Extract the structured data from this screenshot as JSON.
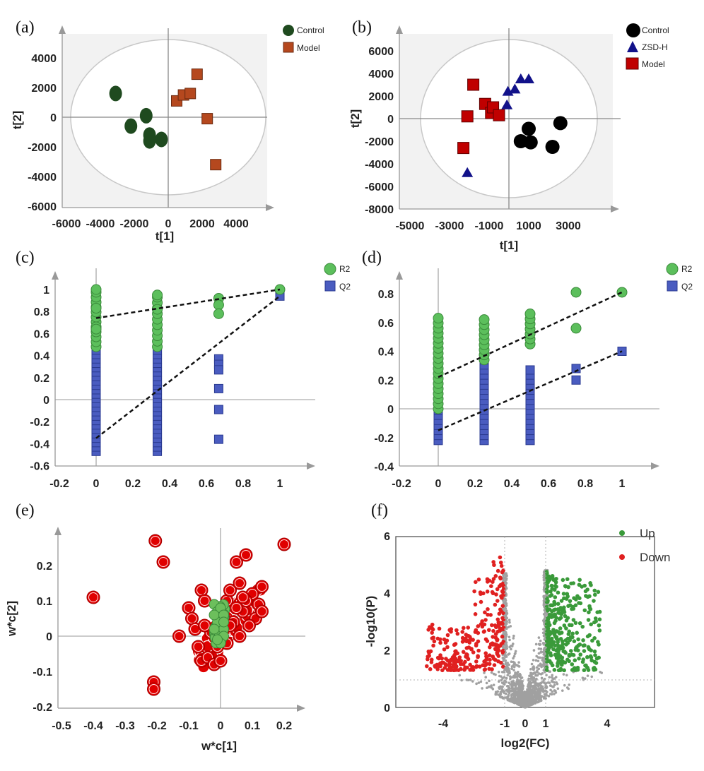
{
  "colors": {
    "control_a": "#1f4a1f",
    "model_a": "#b5481e",
    "control_b": "#000000",
    "zsd_b": "#12128a",
    "model_b": "#c00000",
    "r2": "#5cbf5c",
    "q2": "#4a5cc0",
    "splot_red": "#e00000",
    "splot_green": "#6cbf5c",
    "up": "#3a9a3a",
    "down": "#e02020",
    "ns": "#a0a0a0"
  },
  "chart_data": [
    {
      "panel": "(a)",
      "type": "scatter",
      "xlabel": "t[1]",
      "ylabel": "t[2]",
      "xlim": [
        -6000,
        6000
      ],
      "ylim": [
        -6000,
        5500
      ],
      "xticks": [
        "-6000",
        "-4000",
        "-2000",
        "0",
        "2000",
        "4000"
      ],
      "yticks": [
        "4000",
        "2000",
        "0",
        "-2000",
        "-4000",
        "-6000"
      ],
      "legend": [
        "Control",
        "Model"
      ],
      "series": [
        {
          "name": "Control",
          "marker": "circle",
          "points": [
            [
              -3100,
              1600
            ],
            [
              -2200,
              -600
            ],
            [
              -1300,
              100
            ],
            [
              -1100,
              -1200
            ],
            [
              -1100,
              -1600
            ],
            [
              -400,
              -1500
            ]
          ]
        },
        {
          "name": "Model",
          "marker": "square",
          "points": [
            [
              500,
              1100
            ],
            [
              900,
              1500
            ],
            [
              1300,
              1600
            ],
            [
              1700,
              2900
            ],
            [
              2300,
              -100
            ],
            [
              2800,
              -3200
            ]
          ]
        }
      ]
    },
    {
      "panel": "(b)",
      "type": "scatter",
      "xlabel": "t[1]",
      "ylabel": "t[2]",
      "xlim": [
        -5000,
        5500
      ],
      "ylim": [
        -8000,
        7000
      ],
      "xticks": [
        "-5000",
        "-3000",
        "-1000",
        "1000",
        "3000"
      ],
      "yticks": [
        "6000",
        "4000",
        "2000",
        "0",
        "-2000",
        "-4000",
        "-6000",
        "-8000"
      ],
      "legend": [
        "Control",
        "ZSD-H",
        "Model"
      ],
      "series": [
        {
          "name": "Control",
          "marker": "circle",
          "points": [
            [
              600,
              -2000
            ],
            [
              1000,
              -900
            ],
            [
              1100,
              -2100
            ],
            [
              2200,
              -2500
            ],
            [
              2600,
              -400
            ]
          ]
        },
        {
          "name": "ZSD-H",
          "marker": "triangle",
          "points": [
            [
              -2100,
              -4800
            ],
            [
              -100,
              1200
            ],
            [
              -50,
              2400
            ],
            [
              300,
              2600
            ],
            [
              600,
              3500
            ],
            [
              1000,
              3500
            ]
          ]
        },
        {
          "name": "Model",
          "marker": "square",
          "points": [
            [
              -2300,
              -2600
            ],
            [
              -2100,
              200
            ],
            [
              -1800,
              3000
            ],
            [
              -1200,
              1300
            ],
            [
              -900,
              500
            ],
            [
              -800,
              1000
            ],
            [
              -500,
              300
            ]
          ]
        }
      ]
    },
    {
      "panel": "(c)",
      "type": "scatter",
      "xlim": [
        -0.2,
        1.2
      ],
      "ylim": [
        -0.6,
        1.1
      ],
      "xticks": [
        "-0.2",
        "0",
        "0.2",
        "0.4",
        "0.6",
        "0.8",
        "1"
      ],
      "yticks": [
        "1",
        "0.8",
        "0.6",
        "0.4",
        "0.2",
        "0",
        "-0.2",
        "-0.4",
        "-0.6"
      ],
      "legend": [
        "R2",
        "Q2"
      ],
      "series": [
        {
          "name": "R2",
          "marker": "circle",
          "x": 0,
          "ymin": 0.48,
          "ymax": 1.0,
          "points": [
            [
              0,
              1.0
            ],
            [
              0,
              0.83
            ],
            [
              0,
              0.66
            ],
            [
              0,
              0.64
            ],
            [
              0.333,
              0.95
            ],
            [
              0.333,
              0.82
            ],
            [
              0.667,
              0.92
            ],
            [
              0.667,
              0.86
            ],
            [
              0.667,
              0.78
            ],
            [
              1,
              1.0
            ]
          ]
        },
        {
          "name": "Q2",
          "marker": "square",
          "points": [
            [
              0.667,
              0.37
            ],
            [
              0.667,
              0.32
            ],
            [
              0.667,
              0.27
            ],
            [
              0.667,
              0.1
            ],
            [
              0.667,
              -0.09
            ],
            [
              0.667,
              -0.36
            ],
            [
              1,
              0.94
            ]
          ]
        },
        {
          "name": "Q2-column",
          "marker": "square",
          "columns": [
            [
              0,
              -0.47,
              0.84
            ],
            [
              0.333,
              -0.47,
              0.71
            ]
          ]
        }
      ],
      "trend_lines": [
        {
          "name": "R2",
          "from": [
            0,
            0.74
          ],
          "to": [
            1,
            1.0
          ]
        },
        {
          "name": "Q2",
          "from": [
            0,
            -0.35
          ],
          "to": [
            1,
            0.94
          ]
        }
      ]
    },
    {
      "panel": "(d)",
      "type": "scatter",
      "xlim": [
        -0.2,
        1.2
      ],
      "ylim": [
        -0.4,
        0.9
      ],
      "xticks": [
        "-0.2",
        "0",
        "0.2",
        "0.4",
        "0.6",
        "0.8",
        "1"
      ],
      "yticks": [
        "0.8",
        "0.6",
        "0.4",
        "0.2",
        "0",
        "-0.2",
        "-0.4"
      ],
      "legend": [
        "R2",
        "Q2"
      ],
      "series": [
        {
          "name": "R2",
          "marker": "circle",
          "columns": [
            [
              0,
              0.0,
              0.65
            ],
            [
              0.25,
              0.34,
              0.65
            ],
            [
              0.5,
              0.45,
              0.69
            ]
          ],
          "points": [
            [
              0.75,
              0.81
            ],
            [
              0.75,
              0.56
            ],
            [
              1,
              0.81
            ]
          ]
        },
        {
          "name": "Q2",
          "marker": "square",
          "columns": [
            [
              0,
              -0.22,
              0.3
            ],
            [
              0.25,
              -0.22,
              0.41
            ],
            [
              0.5,
              -0.22,
              0.27
            ]
          ],
          "points": [
            [
              0.75,
              0.28
            ],
            [
              0.75,
              0.2
            ],
            [
              1,
              0.4
            ]
          ]
        }
      ],
      "trend_lines": [
        {
          "name": "R2",
          "from": [
            0,
            0.22
          ],
          "to": [
            1,
            0.81
          ]
        },
        {
          "name": "Q2",
          "from": [
            0,
            -0.15
          ],
          "to": [
            1,
            0.4
          ]
        }
      ]
    },
    {
      "panel": "(e)",
      "type": "scatter",
      "xlabel": "w*c[1]",
      "ylabel": "w*c[2]",
      "xlim": [
        -0.5,
        0.25
      ],
      "ylim": [
        -0.2,
        0.3
      ],
      "xticks": [
        "-0.5",
        "-0.4",
        "-0.3",
        "-0.2",
        "-0.1",
        "0",
        "0.1",
        "0.2"
      ],
      "yticks": [
        "0.2",
        "0.1",
        "0",
        "-0.1",
        "-0.2"
      ],
      "series": [
        {
          "name": "red",
          "marker": "circle",
          "points": [
            [
              -0.4,
              0.11
            ],
            [
              -0.205,
              0.27
            ],
            [
              -0.18,
              0.21
            ],
            [
              -0.21,
              -0.13
            ],
            [
              -0.21,
              -0.15
            ],
            [
              -0.13,
              0.0
            ],
            [
              -0.1,
              0.08
            ],
            [
              -0.09,
              0.05
            ],
            [
              -0.08,
              0.02
            ],
            [
              -0.06,
              0.13
            ],
            [
              -0.05,
              0.1
            ],
            [
              -0.07,
              -0.03
            ],
            [
              -0.06,
              -0.07
            ],
            [
              -0.04,
              -0.06
            ],
            [
              -0.02,
              -0.08
            ],
            [
              0.0,
              -0.07
            ],
            [
              0.02,
              0.1
            ],
            [
              0.03,
              0.13
            ],
            [
              0.05,
              0.21
            ],
            [
              0.06,
              0.15
            ],
            [
              0.07,
              0.07
            ],
            [
              0.08,
              0.23
            ],
            [
              0.1,
              0.12
            ],
            [
              0.11,
              0.05
            ],
            [
              0.12,
              0.09
            ],
            [
              0.13,
              0.14
            ],
            [
              0.13,
              0.07
            ],
            [
              0.2,
              0.26
            ],
            [
              0.04,
              0.04
            ],
            [
              0.06,
              0.0
            ],
            [
              0.08,
              0.1
            ],
            [
              0.02,
              -0.02
            ],
            [
              -0.03,
              0.01
            ],
            [
              0.01,
              0.05
            ],
            [
              0.09,
              0.03
            ],
            [
              0.05,
              0.08
            ],
            [
              0.03,
              0.03
            ],
            [
              -0.01,
              -0.03
            ],
            [
              0.07,
              0.11
            ],
            [
              -0.05,
              0.03
            ]
          ]
        },
        {
          "name": "green",
          "marker": "circle",
          "points": [
            [
              -0.02,
              0.09
            ],
            [
              -0.01,
              0.07
            ],
            [
              0.0,
              0.05
            ],
            [
              0.0,
              0.03
            ],
            [
              0.01,
              0.02
            ],
            [
              0.01,
              0.0
            ],
            [
              -0.01,
              0.04
            ],
            [
              0.0,
              0.08
            ],
            [
              -0.02,
              0.06
            ],
            [
              0.01,
              0.06
            ],
            [
              0.0,
              -0.02
            ],
            [
              -0.01,
              -0.01
            ],
            [
              0.01,
              0.04
            ],
            [
              -0.02,
              0.02
            ]
          ]
        }
      ]
    },
    {
      "panel": "(f)",
      "type": "scatter",
      "xlabel": "log2(FC)",
      "ylabel": "-log10(P)",
      "xlim": [
        -6.3,
        6.3
      ],
      "ylim": [
        0,
        6
      ],
      "xticks": [
        "-4",
        "-1",
        "0",
        "1",
        "4"
      ],
      "yticks": [
        "6",
        "4",
        "2",
        "0"
      ],
      "thresholds": {
        "log2fc": [
          -1,
          1
        ],
        "neg_log10_p": 1.0
      },
      "legend": [
        "Up",
        "Down"
      ],
      "series": [
        {
          "name": "Up",
          "xrange": [
            1.05,
            3.6
          ],
          "yrange": [
            1.3,
            5.4
          ]
        },
        {
          "name": "Down",
          "xrange": [
            -4.9,
            -1.05
          ],
          "yrange": [
            1.3,
            5.4
          ]
        },
        {
          "name": "NS",
          "xrange": [
            -6,
            6
          ],
          "yrange": [
            0,
            4.8
          ]
        }
      ]
    }
  ]
}
